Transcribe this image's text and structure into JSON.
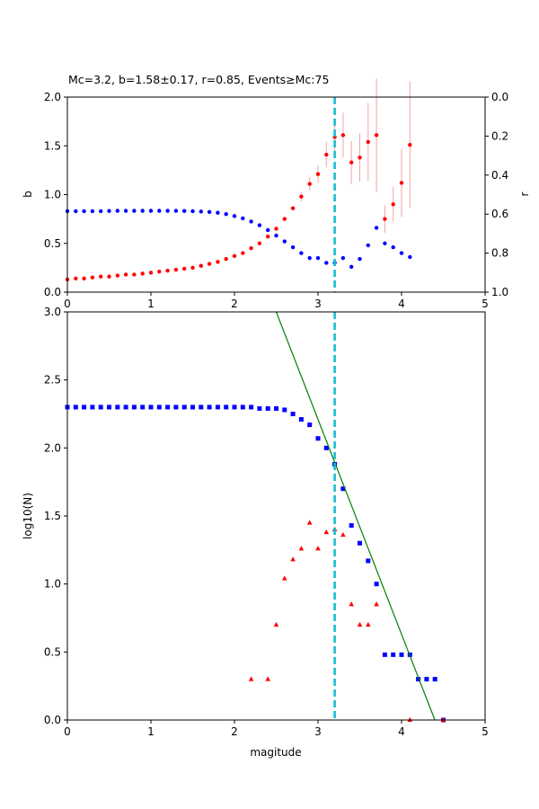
{
  "colors": {
    "b_series": "#ff0000",
    "r_series": "#0000ff",
    "errorbar": "#f4a3a3",
    "cumulative": "#0000ff",
    "noncumulative": "#ff0000",
    "fit_line": "#008000",
    "mc_line": "#17becf"
  },
  "chart_data": [
    {
      "type": "scatter",
      "title": "Mc=3.2, b=1.58±0.17, r=0.85, Events≥Mc:75",
      "xlabel": "",
      "ylabel": "b",
      "y2label": "r",
      "xlim": [
        0,
        5
      ],
      "ylim": [
        0,
        2
      ],
      "y2lim": [
        1,
        0
      ],
      "y2_inverted": true,
      "xticks": [
        "0",
        "1",
        "2",
        "3",
        "4",
        "5"
      ],
      "yticks": [
        "0.0",
        "0.5",
        "1.0",
        "1.5",
        "2.0"
      ],
      "y2ticks": [
        "0.0",
        "0.2",
        "0.4",
        "0.6",
        "0.8",
        "1.0"
      ],
      "mc": 3.2,
      "series": [
        {
          "axis": "left",
          "x": [
            0.0,
            0.1,
            0.2,
            0.3,
            0.4,
            0.5,
            0.6,
            0.7,
            0.8,
            0.9,
            1.0,
            1.1,
            1.2,
            1.3,
            1.4,
            1.5,
            1.6,
            1.7,
            1.8,
            1.9,
            2.0,
            2.1,
            2.2,
            2.3,
            2.4,
            2.5,
            2.6,
            2.7,
            2.8,
            2.9,
            3.0,
            3.1,
            3.2,
            3.3,
            3.4,
            3.5,
            3.6,
            3.7,
            3.8,
            3.9,
            4.0,
            4.1
          ],
          "values": [
            0.13,
            0.14,
            0.14,
            0.15,
            0.16,
            0.16,
            0.17,
            0.18,
            0.18,
            0.19,
            0.2,
            0.21,
            0.22,
            0.23,
            0.24,
            0.25,
            0.27,
            0.29,
            0.31,
            0.34,
            0.37,
            0.4,
            0.45,
            0.5,
            0.57,
            0.65,
            0.75,
            0.86,
            0.98,
            1.11,
            1.21,
            1.41,
            1.59,
            1.61,
            1.33,
            1.38,
            1.54,
            1.61,
            0.75,
            0.9,
            1.12,
            1.51
          ],
          "err": [
            0,
            0,
            0,
            0,
            0,
            0,
            0,
            0,
            0,
            0,
            0,
            0,
            0,
            0,
            0,
            0,
            0,
            0,
            0,
            0,
            0,
            0,
            0,
            0,
            0,
            0,
            0,
            0,
            0.05,
            0.07,
            0.09,
            0.13,
            0.19,
            0.23,
            0.22,
            0.25,
            0.4,
            0.58,
            0.14,
            0.18,
            0.35,
            0.65
          ]
        },
        {
          "axis": "right",
          "x": [
            0.0,
            0.1,
            0.2,
            0.3,
            0.4,
            0.5,
            0.6,
            0.7,
            0.8,
            0.9,
            1.0,
            1.1,
            1.2,
            1.3,
            1.4,
            1.5,
            1.6,
            1.7,
            1.8,
            1.9,
            2.0,
            2.1,
            2.2,
            2.3,
            2.4,
            2.5,
            2.6,
            2.7,
            2.8,
            2.9,
            3.0,
            3.1,
            3.2,
            3.3,
            3.4,
            3.5,
            3.6,
            3.7,
            3.8,
            3.9,
            4.0,
            4.1
          ],
          "values": [
            0.585,
            0.585,
            0.585,
            0.585,
            0.585,
            0.584,
            0.583,
            0.583,
            0.583,
            0.583,
            0.583,
            0.583,
            0.583,
            0.583,
            0.584,
            0.585,
            0.587,
            0.589,
            0.593,
            0.6,
            0.61,
            0.622,
            0.638,
            0.657,
            0.682,
            0.71,
            0.74,
            0.77,
            0.8,
            0.825,
            0.825,
            0.85,
            0.85,
            0.825,
            0.87,
            0.83,
            0.76,
            0.67,
            0.75,
            0.77,
            0.8,
            0.82
          ]
        }
      ]
    },
    {
      "type": "scatter",
      "title": "",
      "xlabel": "magitude",
      "ylabel": "log10(N)",
      "xlim": [
        0,
        5
      ],
      "ylim": [
        0,
        3
      ],
      "xticks": [
        "0",
        "1",
        "2",
        "3",
        "4",
        "5"
      ],
      "yticks": [
        "0.0",
        "0.5",
        "1.0",
        "1.5",
        "2.0",
        "2.5",
        "3.0"
      ],
      "mc": 3.2,
      "fit": {
        "a": 6.95,
        "b": 1.58
      },
      "series": [
        {
          "x": [
            0.0,
            0.1,
            0.2,
            0.3,
            0.4,
            0.5,
            0.6,
            0.7,
            0.8,
            0.9,
            1.0,
            1.1,
            1.2,
            1.3,
            1.4,
            1.5,
            1.6,
            1.7,
            1.8,
            1.9,
            2.0,
            2.1,
            2.2,
            2.3,
            2.4,
            2.5,
            2.6,
            2.7,
            2.8,
            2.9,
            3.0,
            3.1,
            3.2,
            3.3,
            3.4,
            3.5,
            3.6,
            3.7,
            3.8,
            3.9,
            4.0,
            4.1,
            4.2,
            4.3,
            4.4,
            4.5
          ],
          "values": [
            2.3,
            2.3,
            2.3,
            2.3,
            2.3,
            2.3,
            2.3,
            2.3,
            2.3,
            2.3,
            2.3,
            2.3,
            2.3,
            2.3,
            2.3,
            2.3,
            2.3,
            2.3,
            2.3,
            2.3,
            2.3,
            2.3,
            2.3,
            2.29,
            2.29,
            2.29,
            2.28,
            2.25,
            2.21,
            2.17,
            2.07,
            2.0,
            1.88,
            1.7,
            1.43,
            1.3,
            1.17,
            1.0,
            0.48,
            0.48,
            0.48,
            0.48,
            0.3,
            0.3,
            0.3,
            0.0
          ]
        },
        {
          "x": [
            2.2,
            2.4,
            2.5,
            2.6,
            2.7,
            2.8,
            2.9,
            3.0,
            3.1,
            3.2,
            3.3,
            3.4,
            3.5,
            3.6,
            3.7,
            4.1,
            4.5
          ],
          "values": [
            0.3,
            0.3,
            0.7,
            1.04,
            1.18,
            1.26,
            1.45,
            1.26,
            1.38,
            1.4,
            1.36,
            0.85,
            0.7,
            0.7,
            0.85,
            0.0,
            0.0
          ]
        }
      ]
    }
  ]
}
